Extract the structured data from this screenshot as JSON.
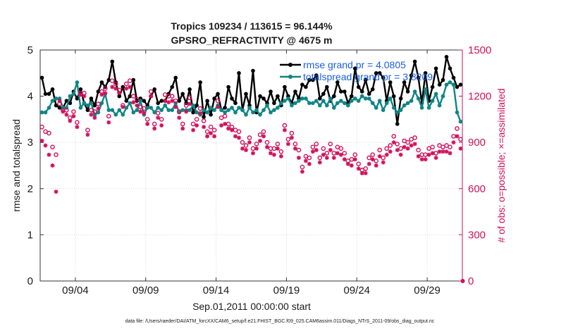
{
  "chart_data": {
    "type": "line",
    "title": "Tropics 109234 / 113615 = 96.144%",
    "subtitle": "GPSRO_REFRACTIVITY @ 4675 m",
    "xlabel": "Sep.01,2011 00:00:00 start",
    "ylabel": "rmse and totalspread",
    "ylabel_right": "# of obs: o=possible; ×=assimilated",
    "ylim": [
      0,
      5
    ],
    "ylim_right": [
      0,
      1500
    ],
    "x_ticks": [
      {
        "day": 4,
        "label": "09/04"
      },
      {
        "day": 9,
        "label": "09/09"
      },
      {
        "day": 14,
        "label": "09/14"
      },
      {
        "day": 19,
        "label": "09/19"
      },
      {
        "day": 24,
        "label": "09/24"
      },
      {
        "day": 29,
        "label": "09/29"
      }
    ],
    "xlim": [
      1.5,
      31.5
    ],
    "y_ticks": [
      0,
      1,
      2,
      3,
      4,
      5
    ],
    "y_ticks_right": [
      0,
      300,
      600,
      900,
      1200,
      1500
    ],
    "grid": true,
    "legend_position": "top-right",
    "x_days": [
      1.625,
      1.875,
      2.125,
      2.375,
      2.625,
      2.875,
      3.125,
      3.375,
      3.625,
      3.875,
      4.125,
      4.375,
      4.625,
      4.875,
      5.125,
      5.375,
      5.625,
      5.875,
      6.125,
      6.375,
      6.625,
      6.875,
      7.125,
      7.375,
      7.625,
      7.875,
      8.125,
      8.375,
      8.625,
      8.875,
      9.125,
      9.375,
      9.625,
      9.875,
      10.125,
      10.375,
      10.625,
      10.875,
      11.125,
      11.375,
      11.625,
      11.875,
      12.125,
      12.375,
      12.625,
      12.875,
      13.125,
      13.375,
      13.625,
      13.875,
      14.125,
      14.375,
      14.625,
      14.875,
      15.125,
      15.375,
      15.625,
      15.875,
      16.125,
      16.375,
      16.625,
      16.875,
      17.125,
      17.375,
      17.625,
      17.875,
      18.125,
      18.375,
      18.625,
      18.875,
      19.125,
      19.375,
      19.625,
      19.875,
      20.125,
      20.375,
      20.625,
      20.875,
      21.125,
      21.375,
      21.625,
      21.875,
      22.125,
      22.375,
      22.625,
      22.875,
      23.125,
      23.375,
      23.625,
      23.875,
      24.125,
      24.375,
      24.625,
      24.875,
      25.125,
      25.375,
      25.625,
      25.875,
      26.125,
      26.375,
      26.625,
      26.875,
      27.125,
      27.375,
      27.625,
      27.875,
      28.125,
      28.375,
      28.625,
      28.875,
      29.125,
      29.375,
      29.625,
      29.875,
      30.125,
      30.375,
      30.625,
      30.875,
      31.125,
      31.375
    ],
    "series": [
      {
        "name": "rmse",
        "legend": "rmse grand pr = 4.0805",
        "color": "#000000",
        "axis": "left",
        "marker": "filled-circle",
        "values": [
          4.4,
          4.05,
          4.05,
          4.15,
          3.8,
          3.75,
          3.75,
          3.9,
          3.85,
          4.1,
          3.95,
          4.15,
          3.85,
          3.7,
          3.95,
          3.8,
          4.1,
          4.3,
          4.2,
          4.35,
          4.75,
          4.3,
          4.0,
          4.2,
          3.9,
          4.0,
          4.35,
          3.9,
          3.95,
          3.9,
          3.8,
          4.0,
          4.15,
          3.85,
          3.9,
          3.9,
          4.05,
          4.2,
          4.4,
          3.9,
          4.05,
          3.85,
          4.15,
          3.65,
          3.8,
          4.3,
          3.55,
          3.9,
          3.6,
          3.95,
          4.05,
          3.7,
          3.75,
          4.2,
          3.95,
          3.85,
          4.5,
          3.7,
          4.05,
          3.8,
          4.55,
          3.65,
          4.0,
          3.95,
          3.85,
          4.1,
          3.85,
          4.0,
          3.8,
          4.2,
          4.0,
          3.85,
          4.1,
          3.95,
          4.25,
          4.2,
          4.35,
          4.35,
          4.45,
          3.95,
          4.05,
          4.2,
          3.9,
          4.0,
          4.3,
          4.1,
          4.1,
          3.85,
          4.0,
          4.6,
          4.2,
          4.1,
          4.35,
          4.05,
          4.15,
          4.5,
          4.5,
          4.4,
          3.9,
          4.3,
          4.0,
          3.4,
          3.95,
          4.3,
          4.1,
          4.45,
          4.75,
          4.4,
          3.85,
          4.5,
          3.9,
          4.2,
          4.6,
          4.25,
          4.35,
          4.85,
          4.6,
          4.4,
          4.2,
          4.25
        ]
      },
      {
        "name": "totalspread",
        "legend": "totalspread grand pr = 3.8209",
        "color": "#0f8585",
        "axis": "left",
        "marker": "filled-circle",
        "values": [
          3.65,
          3.65,
          3.75,
          3.9,
          3.95,
          3.95,
          3.75,
          3.75,
          4.0,
          4.05,
          4.3,
          3.75,
          3.85,
          3.8,
          3.85,
          3.6,
          3.65,
          3.85,
          4.05,
          3.7,
          3.7,
          3.6,
          3.7,
          3.6,
          3.75,
          3.85,
          3.65,
          3.7,
          3.9,
          3.6,
          3.75,
          3.75,
          3.65,
          3.75,
          3.7,
          3.8,
          3.7,
          3.7,
          3.85,
          3.65,
          3.7,
          3.7,
          3.7,
          3.8,
          3.65,
          3.6,
          3.7,
          3.65,
          3.75,
          3.7,
          3.8,
          3.7,
          3.65,
          3.7,
          3.75,
          3.65,
          3.75,
          3.7,
          3.6,
          3.75,
          3.65,
          3.7,
          3.6,
          3.7,
          3.8,
          3.65,
          3.7,
          3.75,
          3.85,
          3.9,
          3.95,
          3.8,
          3.85,
          3.9,
          3.95,
          3.95,
          3.85,
          3.85,
          3.9,
          3.8,
          3.9,
          3.8,
          3.95,
          3.75,
          3.85,
          3.9,
          3.85,
          3.8,
          3.9,
          3.95,
          3.9,
          4.0,
          3.95,
          3.95,
          3.85,
          3.75,
          3.9,
          3.7,
          3.85,
          3.95,
          3.75,
          3.65,
          3.7,
          3.8,
          3.85,
          3.9,
          4.1,
          3.95,
          3.75,
          4.15,
          3.75,
          3.9,
          4.05,
          3.8,
          4.0,
          4.25,
          4.3,
          4.25,
          3.65,
          3.45
        ]
      },
      {
        "name": "possible",
        "color": "#d0105a",
        "axis": "right",
        "marker": "open-circle",
        "values": [
          1000,
          970,
          960,
          870,
          820,
          1150,
          1110,
          1110,
          1060,
          1100,
          1030,
          1220,
          1220,
          980,
          1110,
          1100,
          1150,
          1230,
          1250,
          1070,
          1300,
          1280,
          1240,
          1140,
          1280,
          1300,
          1200,
          1180,
          1130,
          1120,
          1050,
          1230,
          1020,
          1090,
          1050,
          1210,
          1200,
          1200,
          1170,
          1100,
          1020,
          1140,
          1190,
          1020,
          1050,
          1120,
          1040,
          970,
          1000,
          980,
          1170,
          1060,
          1070,
          1020,
          1000,
          980,
          970,
          900,
          880,
          930,
          860,
          890,
          950,
          970,
          900,
          860,
          860,
          890,
          840,
          1010,
          920,
          960,
          890,
          850,
          740,
          810,
          800,
          870,
          890,
          800,
          860,
          830,
          890,
          830,
          870,
          860,
          830,
          780,
          790,
          820,
          760,
          720,
          730,
          800,
          820,
          780,
          850,
          800,
          860,
          880,
          940,
          890,
          860,
          910,
          900,
          920,
          930,
          850,
          820,
          820,
          860,
          870,
          830,
          880,
          870,
          880,
          870,
          940,
          990,
          920
        ]
      },
      {
        "name": "assimilated",
        "color": "#d0105a",
        "axis": "right",
        "marker": "asterisk",
        "values": [
          910,
          880,
          820,
          750,
          580,
          1170,
          1100,
          1080,
          1040,
          1070,
          1000,
          1210,
          1200,
          950,
          1080,
          1060,
          1120,
          1210,
          1220,
          1030,
          1260,
          1250,
          1220,
          1130,
          1250,
          1260,
          1160,
          1140,
          1100,
          1090,
          1020,
          1200,
          990,
          1060,
          1010,
          1170,
          1160,
          1170,
          1130,
          1060,
          990,
          1100,
          1150,
          980,
          1010,
          1090,
          1000,
          940,
          960,
          940,
          1130,
          1010,
          1020,
          990,
          980,
          940,
          930,
          860,
          850,
          900,
          830,
          860,
          910,
          940,
          870,
          830,
          820,
          860,
          810,
          980,
          890,
          930,
          860,
          800,
          710,
          780,
          760,
          840,
          850,
          770,
          820,
          800,
          850,
          800,
          830,
          820,
          790,
          760,
          750,
          790,
          730,
          700,
          700,
          760,
          790,
          750,
          810,
          770,
          820,
          840,
          900,
          850,
          820,
          870,
          860,
          880,
          890,
          810,
          790,
          790,
          820,
          830,
          800,
          840,
          840,
          840,
          830,
          900,
          940,
          860
        ]
      }
    ]
  },
  "footer": "data file: /Users/raeder/DAI/ATM_forcXX/CAM6_setup/f.e21.FHIST_BGC.f09_025.CAM6assim.011/Diags_NTrS_2011-09/obs_diag_output.nc",
  "right_axis_zero_marker": "0"
}
